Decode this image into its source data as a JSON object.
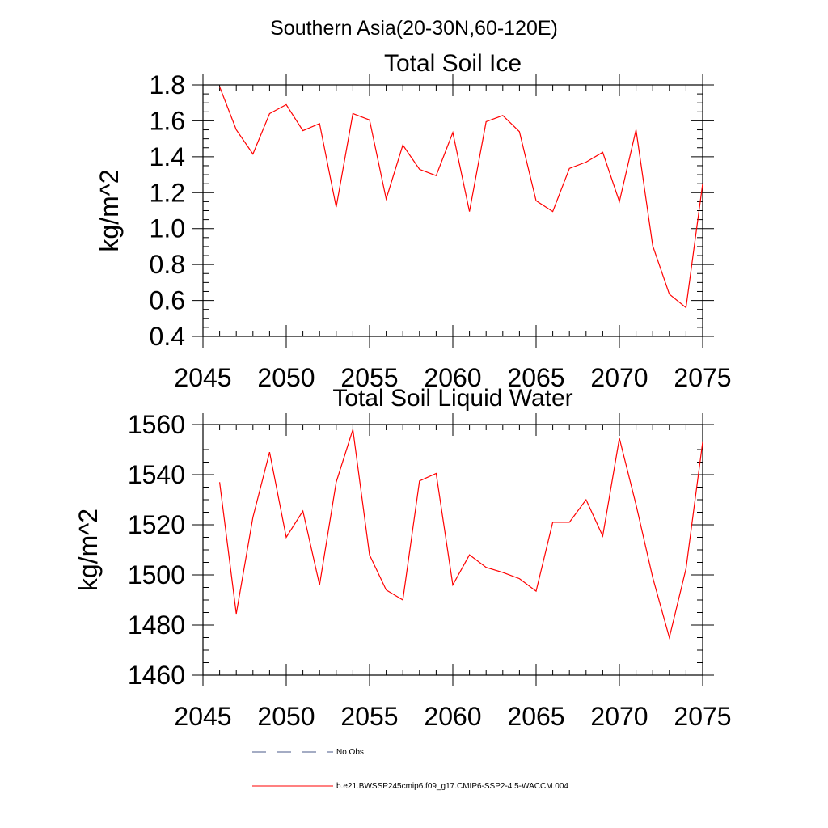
{
  "figure": {
    "suptitle": "Southern Asia(20-30N,60-120E)"
  },
  "chart_data": [
    {
      "type": "line",
      "title": "Total Soil Ice",
      "xlabel": "",
      "ylabel": "kg/m^2",
      "xlim": [
        2045,
        2075
      ],
      "ylim": [
        0.4,
        1.8
      ],
      "xticks": [
        2045,
        2050,
        2055,
        2060,
        2065,
        2070,
        2075
      ],
      "yticks": [
        0.4,
        0.6,
        0.8,
        1.0,
        1.2,
        1.4,
        1.6,
        1.8
      ],
      "ytick_labels": [
        "0.4",
        "0.6",
        "0.8",
        "1.0",
        "1.2",
        "1.4",
        "1.6",
        "1.8"
      ],
      "grid": false,
      "series": [
        {
          "name": "b.e21.BWSSP245cmip6.f09_g17.CMIP6-SSP2-4.5-WACCM.004",
          "color": "#ff0000",
          "x": [
            2046,
            2047,
            2048,
            2049,
            2050,
            2051,
            2052,
            2053,
            2054,
            2055,
            2056,
            2057,
            2058,
            2059,
            2060,
            2061,
            2062,
            2063,
            2064,
            2065,
            2066,
            2067,
            2068,
            2069,
            2070,
            2071,
            2072,
            2073,
            2074,
            2075
          ],
          "y": [
            1.79,
            1.55,
            1.415,
            1.64,
            1.69,
            1.545,
            1.585,
            1.12,
            1.64,
            1.605,
            1.165,
            1.465,
            1.33,
            1.295,
            1.535,
            1.095,
            1.595,
            1.63,
            1.54,
            1.155,
            1.095,
            1.335,
            1.37,
            1.425,
            1.15,
            1.55,
            0.905,
            0.635,
            0.56,
            1.25
          ]
        }
      ]
    },
    {
      "type": "line",
      "title": "Total Soil Liquid Water",
      "xlabel": "",
      "ylabel": "kg/m^2",
      "xlim": [
        2045,
        2075
      ],
      "ylim": [
        1460,
        1560
      ],
      "xticks": [
        2045,
        2050,
        2055,
        2060,
        2065,
        2070,
        2075
      ],
      "yticks": [
        1460,
        1480,
        1500,
        1520,
        1540,
        1560
      ],
      "ytick_labels": [
        "1460",
        "1480",
        "1500",
        "1520",
        "1540",
        "1560"
      ],
      "grid": false,
      "series": [
        {
          "name": "b.e21.BWSSP245cmip6.f09_g17.CMIP6-SSP2-4.5-WACCM.004",
          "color": "#ff0000",
          "x": [
            2046,
            2047,
            2048,
            2049,
            2050,
            2051,
            2052,
            2053,
            2054,
            2055,
            2056,
            2057,
            2058,
            2059,
            2060,
            2061,
            2062,
            2063,
            2064,
            2065,
            2066,
            2067,
            2068,
            2069,
            2070,
            2071,
            2072,
            2073,
            2074,
            2075
          ],
          "y": [
            1537,
            1484.5,
            1523,
            1549,
            1515,
            1525.5,
            1496,
            1537,
            1558,
            1508,
            1494,
            1490,
            1537.5,
            1540.5,
            1496,
            1508,
            1503,
            1501,
            1498.5,
            1493.5,
            1521,
            1521,
            1530,
            1515.5,
            1554.5,
            1528,
            1499,
            1475,
            1502.5,
            1553
          ]
        }
      ]
    }
  ],
  "legend": {
    "placement": "bottom",
    "entries": [
      {
        "label": "No Obs",
        "color": "#4a5a8a",
        "style": "dashed"
      },
      {
        "label": "b.e21.BWSSP245cmip6.f09_g17.CMIP6-SSP2-4.5-WACCM.004",
        "color": "#ff0000",
        "style": "solid"
      }
    ]
  }
}
